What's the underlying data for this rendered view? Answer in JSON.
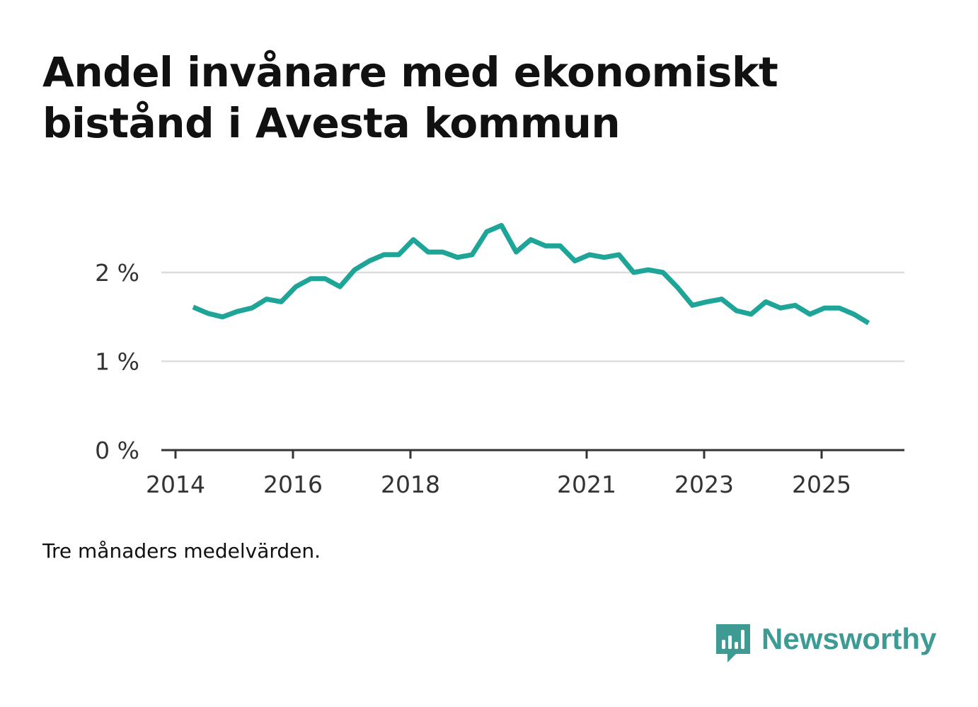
{
  "title_lines": [
    "Andel invånare med ekonomiskt",
    "bistånd i Avesta kommun"
  ],
  "note": "Tre månaders medelvärden.",
  "brand": "Newsworthy",
  "colors": {
    "line": "#1fa598",
    "brand": "#3d9b94",
    "grid": "#dddddd",
    "axis": "#333333",
    "text": "#111111"
  },
  "chart_data": {
    "type": "line",
    "title": "Andel invånare med ekonomiskt bistånd i Avesta kommun",
    "xlabel": "",
    "ylabel": "",
    "x_range": [
      2014.0,
      2026.8
    ],
    "ylim": [
      0,
      2.8
    ],
    "yticks": [
      0,
      1,
      2
    ],
    "ytick_labels": [
      "0 %",
      "1 %",
      "2 %"
    ],
    "xticks": [
      2014,
      2016,
      2018,
      2021,
      2023,
      2025
    ],
    "xtick_labels": [
      "2014",
      "2016",
      "2018",
      "2021",
      "2023",
      "2025"
    ],
    "grid": true,
    "series": [
      {
        "name": "Andel invånare med ekonomiskt bistånd",
        "x": [
          2014.3,
          2014.55,
          2014.8,
          2015.05,
          2015.3,
          2015.55,
          2015.8,
          2016.05,
          2016.3,
          2016.55,
          2016.8,
          2017.05,
          2017.3,
          2017.55,
          2017.8,
          2018.05,
          2018.3,
          2018.55,
          2018.8,
          2019.05,
          2019.3,
          2019.55,
          2019.8,
          2020.05,
          2020.3,
          2020.55,
          2020.8,
          2021.05,
          2021.3,
          2021.55,
          2021.8,
          2022.05,
          2022.3,
          2022.55,
          2022.8,
          2023.05,
          2023.3,
          2023.55,
          2023.8,
          2024.05,
          2024.3,
          2024.55,
          2024.8,
          2025.05,
          2025.3,
          2025.55,
          2025.8
        ],
        "values": [
          1.61,
          1.54,
          1.5,
          1.56,
          1.6,
          1.7,
          1.67,
          1.84,
          1.93,
          1.93,
          1.84,
          2.03,
          2.13,
          2.2,
          2.2,
          2.37,
          2.23,
          2.23,
          2.17,
          2.2,
          2.46,
          2.53,
          2.23,
          2.37,
          2.3,
          2.3,
          2.13,
          2.2,
          2.17,
          2.2,
          2.0,
          2.03,
          2.0,
          1.83,
          1.63,
          1.67,
          1.7,
          1.57,
          1.53,
          1.67,
          1.6,
          1.63,
          1.53,
          1.6,
          1.6,
          1.53,
          1.43
        ]
      }
    ]
  }
}
